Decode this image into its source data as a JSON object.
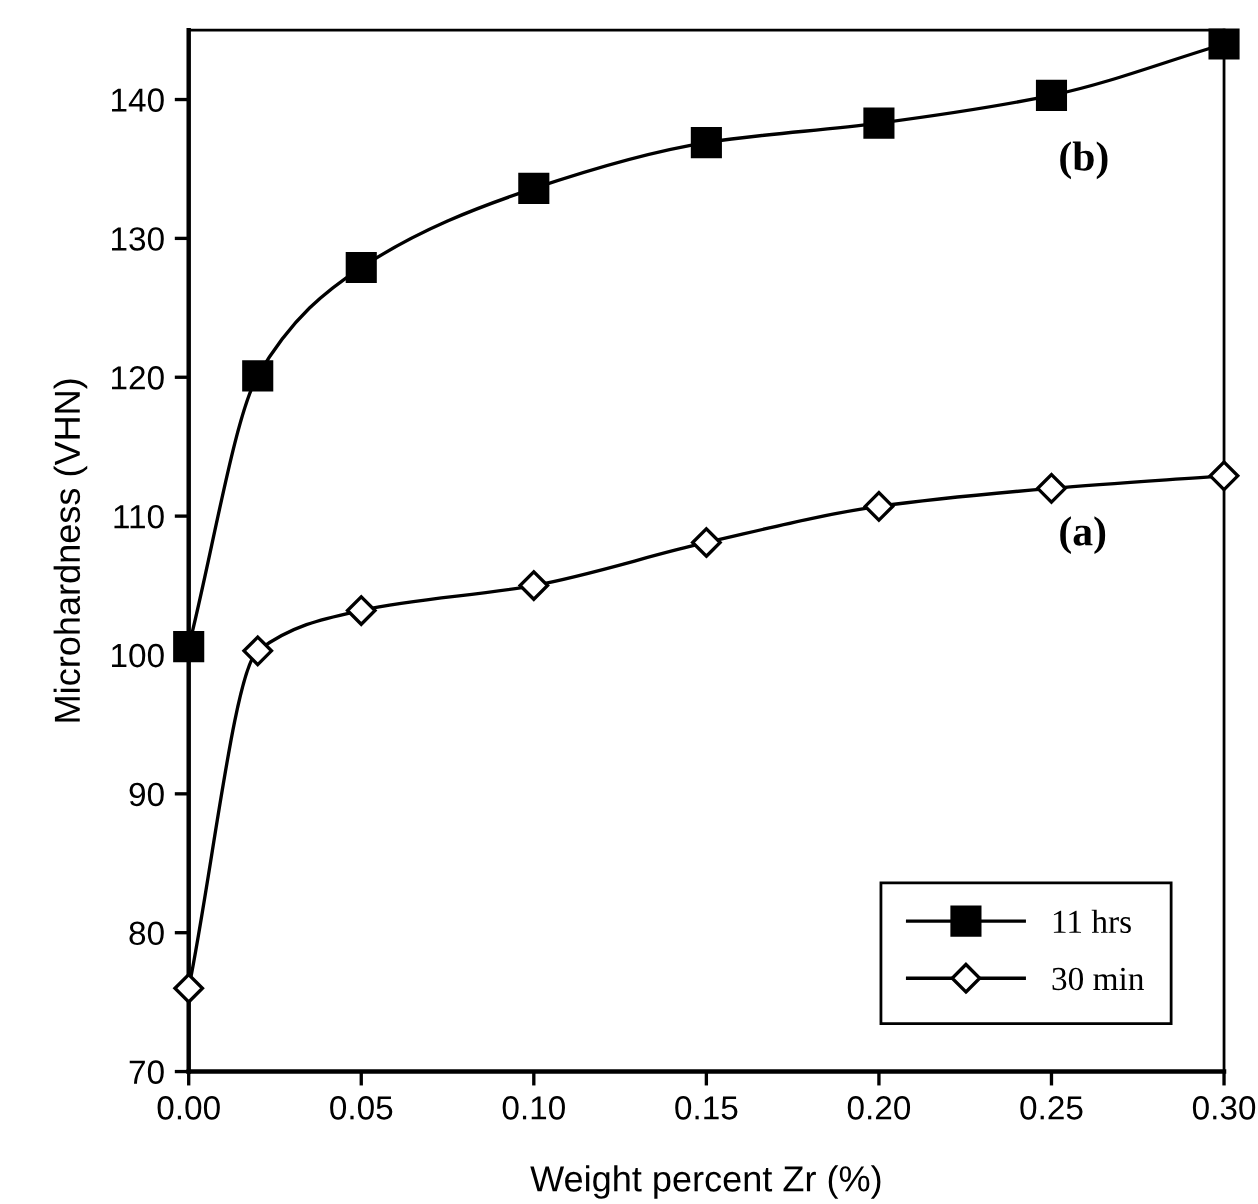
{
  "chart_data": {
    "type": "line",
    "xlabel": "Weight percent Zr (%)",
    "ylabel": "Microhardness (VHN)",
    "x": [
      0.0,
      0.02,
      0.05,
      0.1,
      0.15,
      0.2,
      0.25,
      0.3
    ],
    "series": [
      {
        "name": "11 hrs",
        "color": "#000000",
        "marker": "square",
        "values": [
          100.6,
          120.1,
          127.9,
          133.6,
          136.9,
          138.3,
          140.3,
          144.0
        ]
      },
      {
        "name": "30 min",
        "color": "#000000",
        "marker": "diamond",
        "values": [
          76.0,
          100.3,
          103.2,
          105.0,
          108.1,
          110.7,
          112.0,
          112.9
        ]
      }
    ],
    "annotations": [
      "(b)",
      "(a)"
    ],
    "xlim": [
      0.0,
      0.3
    ],
    "xticks": [
      {
        "value": 0.0,
        "label": "0.00"
      },
      {
        "value": 0.05,
        "label": "0.05"
      },
      {
        "value": 0.1,
        "label": "0.10"
      },
      {
        "value": 0.15,
        "label": "0.15"
      },
      {
        "value": 0.2,
        "label": "0.20"
      },
      {
        "value": 0.25,
        "label": "0.25"
      },
      {
        "value": 0.3,
        "label": "0.30"
      }
    ],
    "ylim": [
      70,
      145
    ],
    "yticks": [
      70,
      80,
      90,
      100,
      110,
      120,
      130,
      140
    ],
    "grid": false,
    "legend": "bottom right",
    "line_style": "solid"
  }
}
